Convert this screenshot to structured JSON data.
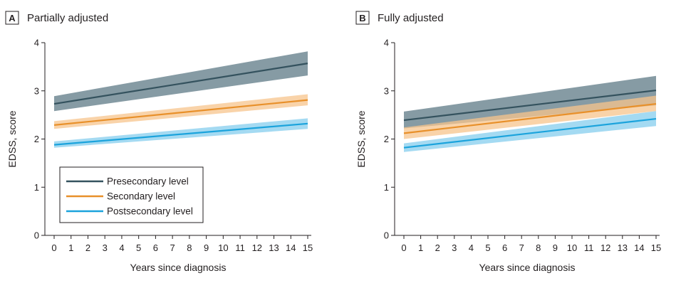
{
  "chart_data": [
    {
      "type": "line",
      "panel_letter": "A",
      "title": "Partially adjusted",
      "xlabel": "Years since diagnosis",
      "ylabel": "EDSS, score",
      "x": [
        0,
        1,
        2,
        3,
        4,
        5,
        6,
        7,
        8,
        9,
        10,
        11,
        12,
        13,
        14,
        15
      ],
      "xlim": [
        0,
        15
      ],
      "ylim": [
        0,
        4
      ],
      "yticks": [
        0,
        1,
        2,
        3,
        4
      ],
      "legend": "inside lower-left",
      "series": [
        {
          "name": "Presecondary level",
          "color": "#34525e",
          "band_color": "#5e7a85",
          "start": 2.73,
          "end": 3.57,
          "lower_start": 2.58,
          "lower_end": 3.32,
          "upper_start": 2.89,
          "upper_end": 3.82
        },
        {
          "name": "Secondary level",
          "color": "#e8902a",
          "band_color": "#f7c48c",
          "start": 2.29,
          "end": 2.81,
          "lower_start": 2.21,
          "lower_end": 2.7,
          "upper_start": 2.37,
          "upper_end": 2.93
        },
        {
          "name": "Postsecondary level",
          "color": "#1ba3dc",
          "band_color": "#85cdee",
          "start": 1.88,
          "end": 2.32,
          "lower_start": 1.82,
          "lower_end": 2.21,
          "upper_start": 1.95,
          "upper_end": 2.43
        }
      ]
    },
    {
      "type": "line",
      "panel_letter": "B",
      "title": "Fully adjusted",
      "xlabel": "Years since diagnosis",
      "ylabel": "EDSS, score",
      "x": [
        0,
        1,
        2,
        3,
        4,
        5,
        6,
        7,
        8,
        9,
        10,
        11,
        12,
        13,
        14,
        15
      ],
      "xlim": [
        0,
        15
      ],
      "ylim": [
        0,
        4
      ],
      "yticks": [
        0,
        1,
        2,
        3,
        4
      ],
      "series": [
        {
          "name": "Presecondary level",
          "color": "#34525e",
          "band_color": "#5e7a85",
          "start": 2.39,
          "end": 3.01,
          "lower_start": 2.22,
          "lower_end": 2.7,
          "upper_start": 2.57,
          "upper_end": 3.31
        },
        {
          "name": "Secondary level",
          "color": "#e8902a",
          "band_color": "#f7c48c",
          "start": 2.12,
          "end": 2.73,
          "lower_start": 2.0,
          "lower_end": 2.58,
          "upper_start": 2.24,
          "upper_end": 2.9
        },
        {
          "name": "Postsecondary level",
          "color": "#1ba3dc",
          "band_color": "#85cdee",
          "start": 1.82,
          "end": 2.42,
          "lower_start": 1.73,
          "lower_end": 2.27,
          "upper_start": 1.91,
          "upper_end": 2.58
        }
      ]
    }
  ]
}
